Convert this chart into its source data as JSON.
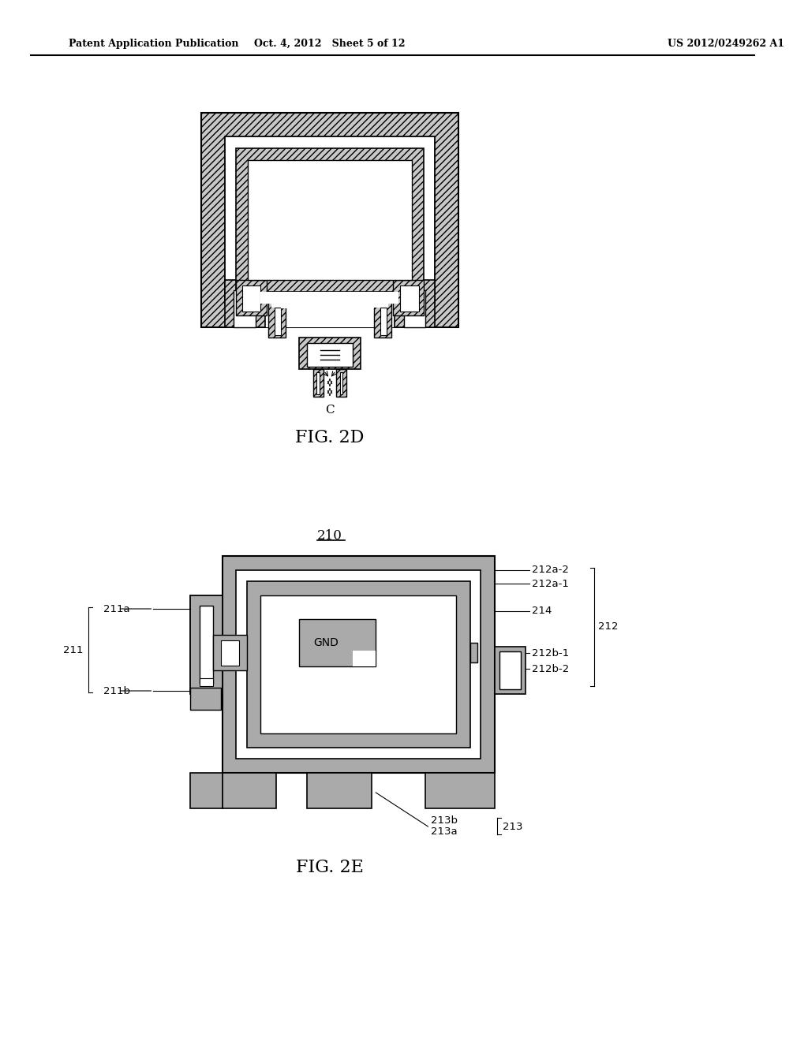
{
  "background_color": "#ffffff",
  "header_left": "Patent Application Publication",
  "header_center": "Oct. 4, 2012   Sheet 5 of 12",
  "header_right": "US 2012/0249262 A1",
  "fig2d_label": "FIG. 2D",
  "fig2e_label": "FIG. 2E",
  "fig2e_ref": "210",
  "hatch_color": "#c8c8c8",
  "gray_2e": "#aaaaaa",
  "white": "#ffffff",
  "black": "#000000"
}
